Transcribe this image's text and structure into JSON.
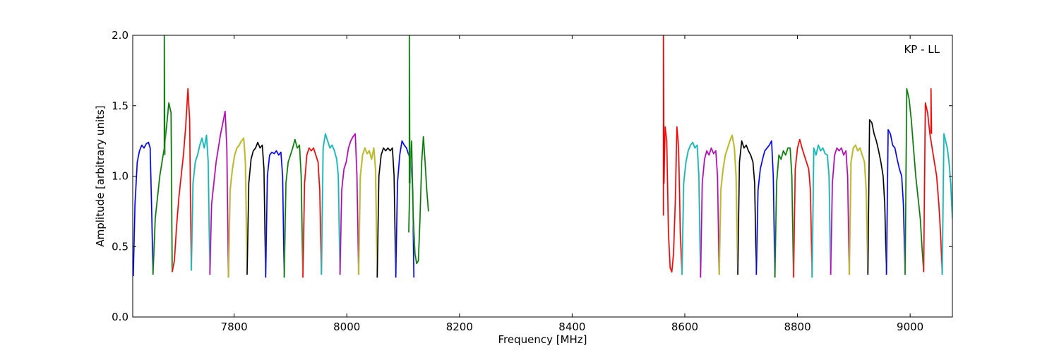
{
  "chart_data": {
    "type": "line",
    "title": "",
    "annotation": "KP - LL",
    "xlabel": "Frequency [MHz]",
    "ylabel": "Amplitude [arbitrary units]",
    "xlim": [
      7620,
      9075
    ],
    "ylim": [
      0,
      2.0
    ],
    "xticks": [
      7800,
      8000,
      8200,
      8400,
      8600,
      8800,
      9000
    ],
    "yticks": [
      0.0,
      0.5,
      1.0,
      1.5,
      2.0
    ],
    "xtick_labels": [
      "7800",
      "8000",
      "8200",
      "8400",
      "8600",
      "8800",
      "9000"
    ],
    "ytick_labels": [
      "0.0",
      "0.5",
      "1.0",
      "1.5",
      "2.0"
    ],
    "grid": false,
    "legend": "none",
    "background_trace_color": "#bbbbbb",
    "series": [
      {
        "color": "#0000ff",
        "x": [
          7621,
          7624,
          7628,
          7632,
          7636,
          7640,
          7644,
          7648,
          7651,
          7654,
          7656
        ],
        "y": [
          0.29,
          0.8,
          1.1,
          1.18,
          1.22,
          1.2,
          1.23,
          1.24,
          1.2,
          0.7,
          0.3
        ]
      },
      {
        "color": "#008000",
        "x": [
          7656,
          7660,
          7664,
          7668,
          7672,
          7676,
          7680,
          7684,
          7688,
          7690
        ],
        "y": [
          0.3,
          0.7,
          0.85,
          1.0,
          1.1,
          1.2,
          1.35,
          1.52,
          1.45,
          0.32
        ]
      },
      {
        "color": "#008000",
        "x": [
          7676,
          7676,
          7677
        ],
        "y": [
          1.2,
          2.0,
          1.15
        ]
      },
      {
        "color": "#ff0000",
        "x": [
          7690,
          7694,
          7698,
          7702,
          7706,
          7710,
          7714,
          7718,
          7721,
          7724
        ],
        "y": [
          0.32,
          0.4,
          0.65,
          0.85,
          1.0,
          1.15,
          1.35,
          1.62,
          1.4,
          0.33
        ]
      },
      {
        "color": "#00bfbf",
        "x": [
          7724,
          7727,
          7731,
          7735,
          7739,
          7743,
          7747,
          7751,
          7754,
          7757
        ],
        "y": [
          0.33,
          0.95,
          1.1,
          1.15,
          1.22,
          1.27,
          1.2,
          1.29,
          1.1,
          0.3
        ]
      },
      {
        "color": "#bf00bf",
        "x": [
          7757,
          7760,
          7764,
          7768,
          7772,
          7776,
          7780,
          7784,
          7787,
          7790
        ],
        "y": [
          0.3,
          0.8,
          0.95,
          1.1,
          1.2,
          1.3,
          1.38,
          1.46,
          1.2,
          0.28
        ]
      },
      {
        "color": "#bfbf00",
        "x": [
          7790,
          7793,
          7797,
          7801,
          7805,
          7809,
          7813,
          7817,
          7820,
          7823
        ],
        "y": [
          0.28,
          0.9,
          1.05,
          1.15,
          1.2,
          1.22,
          1.25,
          1.27,
          1.1,
          0.3
        ]
      },
      {
        "color": "#000000",
        "x": [
          7823,
          7826,
          7830,
          7834,
          7838,
          7842,
          7846,
          7850,
          7853,
          7856
        ],
        "y": [
          0.3,
          0.95,
          1.12,
          1.18,
          1.2,
          1.24,
          1.2,
          1.22,
          1.05,
          0.28
        ]
      },
      {
        "color": "#0000ff",
        "x": [
          7856,
          7859,
          7863,
          7867,
          7871,
          7875,
          7879,
          7883,
          7886,
          7889
        ],
        "y": [
          0.28,
          1.0,
          1.15,
          1.17,
          1.16,
          1.18,
          1.15,
          1.17,
          1.0,
          0.28
        ]
      },
      {
        "color": "#008000",
        "x": [
          7889,
          7892,
          7896,
          7900,
          7904,
          7908,
          7912,
          7916,
          7919,
          7922
        ],
        "y": [
          0.28,
          0.95,
          1.1,
          1.15,
          1.2,
          1.26,
          1.2,
          1.22,
          1.0,
          0.28
        ]
      },
      {
        "color": "#ff0000",
        "x": [
          7922,
          7925,
          7929,
          7933,
          7937,
          7941,
          7945,
          7949,
          7952,
          7955
        ],
        "y": [
          0.28,
          0.95,
          1.15,
          1.2,
          1.18,
          1.2,
          1.15,
          1.1,
          0.9,
          0.3
        ]
      },
      {
        "color": "#00bfbf",
        "x": [
          7955,
          7958,
          7962,
          7966,
          7970,
          7974,
          7978,
          7982,
          7985,
          7988
        ],
        "y": [
          0.3,
          1.2,
          1.3,
          1.25,
          1.2,
          1.22,
          1.18,
          1.12,
          1.0,
          0.3
        ]
      },
      {
        "color": "#bf00bf",
        "x": [
          7988,
          7991,
          7995,
          7999,
          8003,
          8007,
          8011,
          8015,
          8018,
          8021
        ],
        "y": [
          0.3,
          0.9,
          1.05,
          1.1,
          1.2,
          1.25,
          1.28,
          1.3,
          1.0,
          0.3
        ]
      },
      {
        "color": "#bfbf00",
        "x": [
          8021,
          8024,
          8028,
          8032,
          8036,
          8040,
          8044,
          8048,
          8051,
          8054
        ],
        "y": [
          0.3,
          1.0,
          1.15,
          1.2,
          1.16,
          1.18,
          1.12,
          1.2,
          1.05,
          0.28
        ]
      },
      {
        "color": "#000000",
        "x": [
          8054,
          8057,
          8061,
          8065,
          8069,
          8073,
          8077,
          8081,
          8084,
          8087
        ],
        "y": [
          0.28,
          1.0,
          1.15,
          1.2,
          1.18,
          1.2,
          1.18,
          1.2,
          1.0,
          0.28
        ]
      },
      {
        "color": "#0000ff",
        "x": [
          8087,
          8090,
          8094,
          8098,
          8102,
          8106,
          8110,
          8114,
          8117,
          8119
        ],
        "y": [
          0.28,
          0.95,
          1.15,
          1.25,
          1.22,
          1.2,
          1.15,
          1.1,
          0.9,
          0.28
        ]
      },
      {
        "color": "#008000",
        "x": [
          8110,
          8112,
          8115,
          8118,
          8121,
          8124,
          8127,
          8130,
          8133,
          8136,
          8139,
          8142,
          8145
        ],
        "y": [
          0.6,
          1.0,
          1.25,
          0.7,
          0.45,
          0.38,
          0.4,
          0.7,
          1.1,
          1.28,
          1.1,
          0.9,
          0.75
        ]
      },
      {
        "color": "#008000",
        "x": [
          8111,
          8111,
          8112
        ],
        "y": [
          0.95,
          2.0,
          0.95
        ]
      },
      {
        "color": "#ff0000",
        "x": [
          8562,
          8562,
          8563,
          8565,
          8568,
          8571,
          8574,
          8577,
          8580,
          8583,
          8586,
          8589,
          8592,
          8595
        ],
        "y": [
          0.72,
          2.0,
          0.95,
          1.35,
          1.25,
          0.6,
          0.35,
          0.32,
          0.45,
          0.8,
          1.35,
          1.2,
          0.6,
          0.3
        ]
      },
      {
        "color": "#00bfbf",
        "x": [
          8595,
          8598,
          8602,
          8606,
          8610,
          8614,
          8618,
          8622,
          8625,
          8628
        ],
        "y": [
          0.3,
          0.95,
          1.1,
          1.18,
          1.22,
          1.24,
          1.2,
          1.22,
          1.0,
          0.28
        ]
      },
      {
        "color": "#bf00bf",
        "x": [
          8628,
          8631,
          8635,
          8639,
          8643,
          8647,
          8651,
          8655,
          8658,
          8661
        ],
        "y": [
          0.28,
          0.95,
          1.12,
          1.18,
          1.15,
          1.2,
          1.16,
          1.18,
          1.0,
          0.3
        ]
      },
      {
        "color": "#bfbf00",
        "x": [
          8661,
          8664,
          8668,
          8672,
          8676,
          8680,
          8684,
          8688,
          8691,
          8694
        ],
        "y": [
          0.3,
          0.9,
          1.05,
          1.15,
          1.2,
          1.25,
          1.29,
          1.2,
          1.0,
          0.3
        ]
      },
      {
        "color": "#000000",
        "x": [
          8694,
          8697,
          8701,
          8705,
          8709,
          8713,
          8717,
          8721,
          8724,
          8727
        ],
        "y": [
          0.3,
          1.1,
          1.25,
          1.2,
          1.22,
          1.18,
          1.15,
          1.1,
          0.95,
          0.3
        ]
      },
      {
        "color": "#0000ff",
        "x": [
          8727,
          8730,
          8734,
          8738,
          8742,
          8746,
          8750,
          8754,
          8757,
          8760
        ],
        "y": [
          0.3,
          0.9,
          1.05,
          1.12,
          1.18,
          1.2,
          1.22,
          1.25,
          1.0,
          0.28
        ]
      },
      {
        "color": "#008000",
        "x": [
          8760,
          8763,
          8767,
          8771,
          8775,
          8779,
          8783,
          8787,
          8790,
          8793
        ],
        "y": [
          0.28,
          0.95,
          1.15,
          1.12,
          1.18,
          1.15,
          1.2,
          1.2,
          1.0,
          0.28
        ]
      },
      {
        "color": "#ff0000",
        "x": [
          8793,
          8796,
          8800,
          8804,
          8808,
          8812,
          8816,
          8820,
          8823,
          8826
        ],
        "y": [
          0.28,
          1.05,
          1.2,
          1.26,
          1.2,
          1.15,
          1.1,
          1.05,
          0.9,
          0.28
        ]
      },
      {
        "color": "#00bfbf",
        "x": [
          8826,
          8829,
          8833,
          8837,
          8841,
          8845,
          8849,
          8853,
          8856,
          8859
        ],
        "y": [
          0.28,
          1.2,
          1.15,
          1.22,
          1.18,
          1.2,
          1.16,
          1.15,
          1.0,
          0.3
        ]
      },
      {
        "color": "#bf00bf",
        "x": [
          8859,
          8862,
          8866,
          8870,
          8874,
          8878,
          8882,
          8886,
          8889,
          8892
        ],
        "y": [
          0.3,
          0.95,
          1.15,
          1.2,
          1.18,
          1.2,
          1.15,
          1.18,
          1.0,
          0.3
        ]
      },
      {
        "color": "#bfbf00",
        "x": [
          8892,
          8895,
          8899,
          8903,
          8907,
          8911,
          8915,
          8919,
          8922,
          8925
        ],
        "y": [
          0.3,
          1.1,
          1.2,
          1.22,
          1.18,
          1.2,
          1.15,
          1.1,
          0.9,
          0.3
        ]
      },
      {
        "color": "#000000",
        "x": [
          8925,
          8928,
          8932,
          8936,
          8940,
          8944,
          8948,
          8952,
          8955,
          8958
        ],
        "y": [
          0.3,
          1.4,
          1.38,
          1.3,
          1.25,
          1.18,
          1.1,
          1.0,
          0.8,
          0.3
        ]
      },
      {
        "color": "#0000ff",
        "x": [
          8958,
          8961,
          8965,
          8969,
          8973,
          8977,
          8981,
          8985,
          8988,
          8991
        ],
        "y": [
          0.3,
          1.33,
          1.3,
          1.22,
          1.2,
          1.12,
          1.05,
          1.0,
          0.8,
          0.3
        ]
      },
      {
        "color": "#008000",
        "x": [
          8991,
          8994,
          8998,
          9002,
          9006,
          9010,
          9014,
          9018,
          9021,
          9024
        ],
        "y": [
          0.3,
          1.62,
          1.55,
          1.4,
          1.2,
          1.0,
          0.85,
          0.7,
          0.5,
          0.32
        ]
      },
      {
        "color": "#ff0000",
        "x": [
          9024,
          9027,
          9031,
          9035,
          9039,
          9043,
          9047,
          9051,
          9054,
          9057
        ],
        "y": [
          0.32,
          1.52,
          1.45,
          1.3,
          1.2,
          1.1,
          1.0,
          0.8,
          0.6,
          0.3
        ]
      },
      {
        "color": "#ff0000",
        "x": [
          9037,
          9037,
          9038
        ],
        "y": [
          1.3,
          1.62,
          1.3
        ]
      },
      {
        "color": "#00bfbf",
        "x": [
          9057,
          9060,
          9063,
          9066,
          9069,
          9072,
          9075
        ],
        "y": [
          0.3,
          1.3,
          1.25,
          1.2,
          1.1,
          0.95,
          0.7
        ]
      }
    ]
  }
}
